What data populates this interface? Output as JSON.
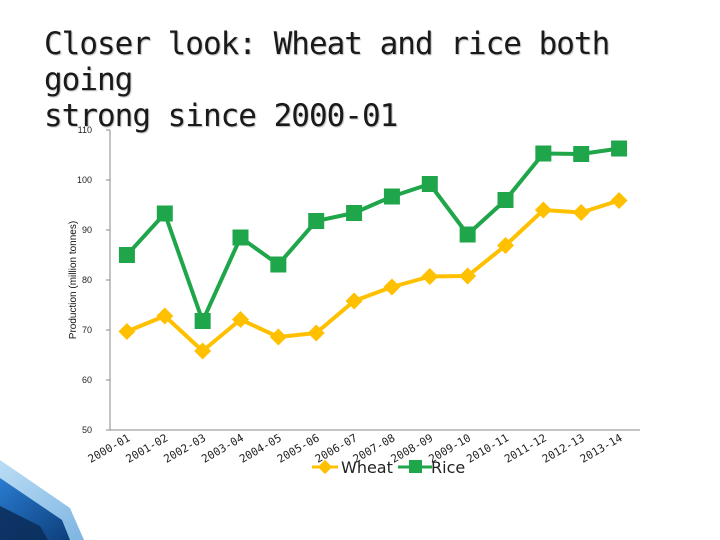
{
  "slide": {
    "title_line1": "Closer look: Wheat and rice both going",
    "title_line2": "strong since 2000-01"
  },
  "colors": {
    "wheat": "#FFC000",
    "rice": "#1FA64A",
    "axis": "#8a8a8a",
    "text": "#222222"
  },
  "chart_data": {
    "type": "line",
    "title": "",
    "xlabel": "",
    "ylabel": "Production (million tonnes)",
    "ylim": [
      50,
      110
    ],
    "yticks": [
      50,
      60,
      70,
      80,
      90,
      100,
      110
    ],
    "grid": false,
    "legend_position": "bottom",
    "categories": [
      "2000-01",
      "2001-02",
      "2002-03",
      "2003-04",
      "2004-05",
      "2005-06",
      "2006-07",
      "2007-08",
      "2008-09",
      "2009-10",
      "2010-11",
      "2011-12",
      "2012-13",
      "2013-14"
    ],
    "series": [
      {
        "name": "Wheat",
        "color": "#FFC000",
        "marker": "diamond",
        "values": [
          69.7,
          72.8,
          65.8,
          72.1,
          68.6,
          69.4,
          75.8,
          78.6,
          80.7,
          80.8,
          86.9,
          94.0,
          93.5,
          95.9
        ]
      },
      {
        "name": "Rice",
        "color": "#1FA64A",
        "marker": "square",
        "values": [
          85.0,
          93.3,
          71.8,
          88.5,
          83.1,
          91.8,
          93.4,
          96.7,
          99.2,
          89.1,
          96.0,
          105.3,
          105.2,
          106.3
        ]
      }
    ]
  }
}
